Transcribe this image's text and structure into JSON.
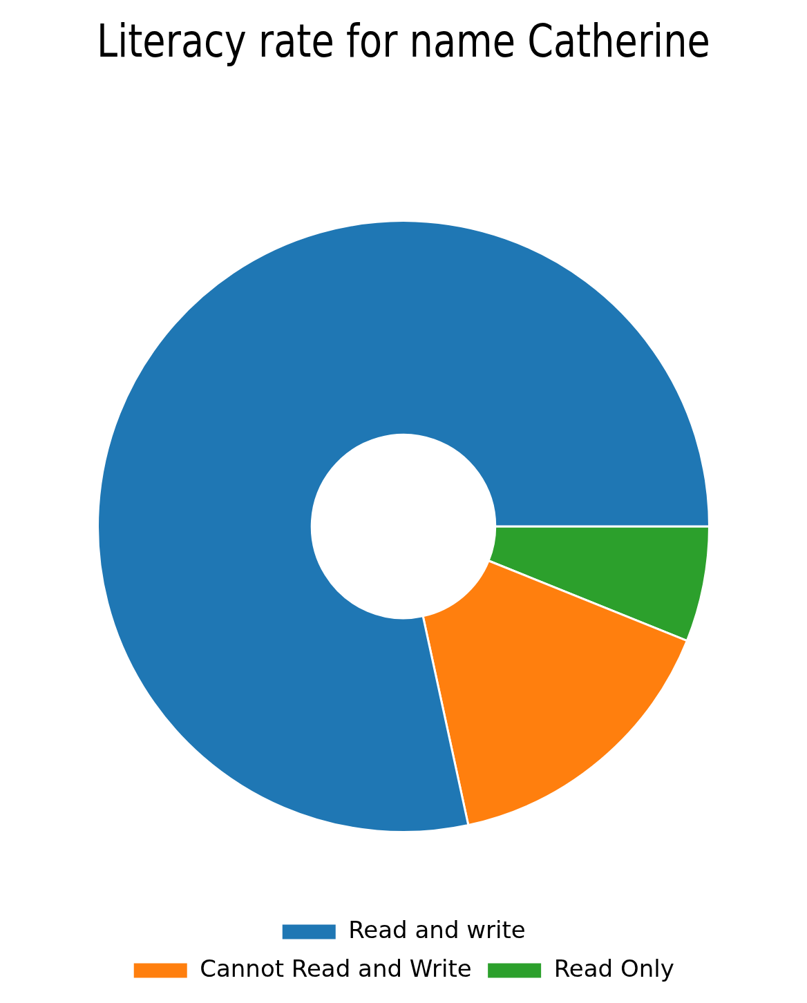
{
  "chart_data": {
    "type": "donut",
    "title": "Literacy rate for name Catherine",
    "categories": [
      "Read and write",
      "Cannot Read and Write",
      "Read Only"
    ],
    "values": [
      78.4,
      15.5,
      6.1
    ],
    "colors": [
      "#1f77b4",
      "#ff7f0e",
      "#2ca02c"
    ],
    "legend": "bottom"
  }
}
